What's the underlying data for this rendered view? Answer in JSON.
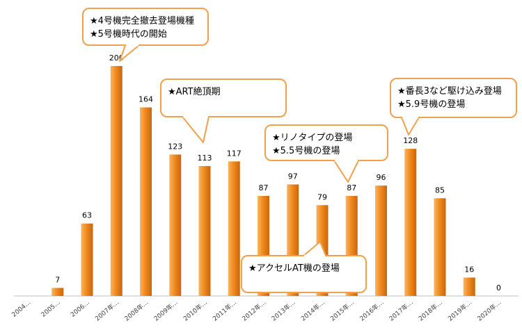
{
  "chart_data": {
    "type": "bar",
    "categories": [
      "2004…",
      "2005…",
      "2006…",
      "2007年…",
      "2008年…",
      "2009年…",
      "2010年…",
      "2011年…",
      "2012年…",
      "2013年…",
      "2014年…",
      "2015年…",
      "2016年…",
      "2017年…",
      "2018年…",
      "2019年…",
      "2020年…"
    ],
    "values": [
      null,
      7,
      63,
      200,
      164,
      123,
      113,
      117,
      87,
      97,
      79,
      87,
      96,
      128,
      85,
      16,
      0
    ],
    "value_labels": [
      "",
      "7",
      "63",
      "200",
      "164",
      "123",
      "113",
      "117",
      "87",
      "97",
      "79",
      "87",
      "96",
      "128",
      "85",
      "16",
      "0"
    ],
    "ylim": [
      0,
      210
    ],
    "grid": false,
    "legend": "none",
    "colors": {
      "bar_light": "#f9b463",
      "bar_mid": "#f08a1e",
      "bar_dark": "#c8660e",
      "callout_border": "#f0a04b",
      "axis": "#bfbfbf"
    },
    "annotations": [
      {
        "lines": [
          "★4号機完全撤去登場機種",
          "★5号機時代の開始"
        ]
      },
      {
        "lines": [
          "★ART絶頂期"
        ]
      },
      {
        "lines": [
          "★リノタイプの登場",
          "★5.5号機の登場"
        ]
      },
      {
        "lines": [
          "★番長3など駆け込み登場",
          "★5.9号機の登場"
        ]
      },
      {
        "lines": [
          "★アクセルAT機の登場"
        ]
      }
    ]
  }
}
